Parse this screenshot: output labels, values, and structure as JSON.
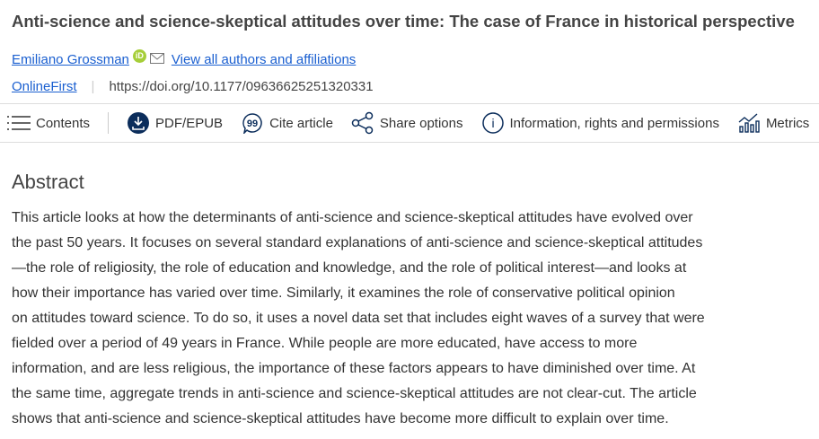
{
  "title": "Anti-science and science-skeptical attitudes over time: The case of France in historical perspective",
  "authors": {
    "name": "Emiliano Grossman",
    "orcid_label": "iD",
    "view_all": "View all authors and affiliations"
  },
  "meta": {
    "status": "OnlineFirst",
    "doi": "https://doi.org/10.1177/09636625251320331"
  },
  "toolbar": [
    {
      "label": "Contents",
      "icon": "menu-icon"
    },
    {
      "label": "PDF/EPUB",
      "icon": "download-icon"
    },
    {
      "label": "Cite article",
      "icon": "quote-icon"
    },
    {
      "label": "Share options",
      "icon": "share-icon"
    },
    {
      "label": "Information, rights and permissions",
      "icon": "info-icon"
    },
    {
      "label": "Metrics",
      "icon": "metrics-icon"
    }
  ],
  "colors": {
    "link": "#1a5fd0",
    "icon": "#0b2d5b",
    "orcid": "#a6ce39"
  },
  "abstract": {
    "heading": "Abstract",
    "lines": [
      "This article looks at how the determinants of anti-science and science-skeptical attitudes have evolved over",
      "the past 50 years. It focuses on several standard explanations of anti-science and science-skeptical attitudes",
      "—the role of religiosity, the role of education and knowledge, and the role of political interest—and looks at",
      "how their importance has varied over time. Similarly, it examines the role of conservative political opinion",
      "on attitudes toward science. To do so, it uses a novel data set that includes eight waves of a survey that were",
      "fielded over a period of 49 years in France. While people are more educated, have access to more",
      "information, and are less religious, the importance of these factors appears to have diminished over time. At",
      "the same time, aggregate trends in anti-science and science-skeptical attitudes are not clear-cut. The article",
      "shows that anti-science and science-skeptical attitudes have become more difficult to explain over time."
    ]
  }
}
